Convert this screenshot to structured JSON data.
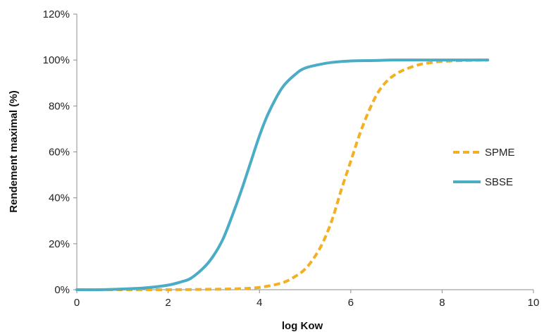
{
  "chart_data": {
    "type": "line",
    "title": "",
    "xlabel": "log Kow",
    "ylabel": "Rendement maximal (%)",
    "xlim": [
      0,
      10
    ],
    "ylim": [
      0,
      120
    ],
    "x_ticks": [
      "0",
      "2",
      "4",
      "6",
      "8",
      "10"
    ],
    "y_ticks": [
      "0%",
      "20%",
      "40%",
      "60%",
      "80%",
      "100%",
      "120%"
    ],
    "grid": false,
    "legend_position": "right",
    "series": [
      {
        "name": "SPME",
        "color": "#F4B023",
        "style": "dashed",
        "x": [
          0,
          1,
          2,
          3,
          3.5,
          4,
          4.5,
          4.8,
          5,
          5.2,
          5.4,
          5.6,
          5.8,
          6,
          6.2,
          6.4,
          6.6,
          6.8,
          7,
          7.2,
          7.5,
          7.8,
          8,
          8.5,
          9
        ],
        "y": [
          0,
          0,
          0,
          0.2,
          0.4,
          1,
          3,
          6,
          9,
          14,
          21,
          31,
          44,
          56,
          68,
          78,
          86,
          91,
          94,
          96,
          98,
          99,
          99.4,
          99.8,
          100
        ]
      },
      {
        "name": "SBSE",
        "color": "#4BACC6",
        "style": "solid",
        "x": [
          0,
          0.5,
          1,
          1.5,
          2,
          2.3,
          2.5,
          2.8,
          3,
          3.2,
          3.4,
          3.6,
          3.8,
          4,
          4.2,
          4.5,
          4.8,
          5,
          5.3,
          5.6,
          6,
          6.5,
          7,
          8,
          9
        ],
        "y": [
          0,
          0,
          0.3,
          0.8,
          2,
          3.5,
          5,
          10,
          15,
          22,
          32,
          43,
          55,
          67,
          77,
          88,
          94,
          96.5,
          98,
          99,
          99.6,
          99.8,
          100,
          100,
          100
        ]
      }
    ]
  }
}
